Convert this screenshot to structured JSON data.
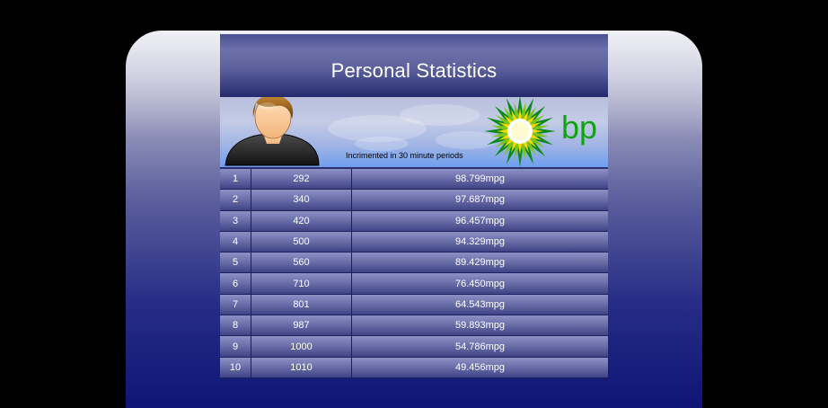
{
  "header": {
    "title": "Personal Statistics",
    "subtitle": "Incrimented in 30 minute periods",
    "logo_text": "bp",
    "logo_icon": "bp-helios-logo-icon",
    "avatar_icon": "user-avatar-icon"
  },
  "colors": {
    "logo_green": "#12a313",
    "logo_yellow": "#ffd800",
    "row_text": "#ffffff",
    "banner_blue": "#6f9ff0"
  },
  "table": {
    "rows": [
      {
        "index": "1",
        "value": "292",
        "mpg": "98.799mpg"
      },
      {
        "index": "2",
        "value": "340",
        "mpg": "97.687mpg"
      },
      {
        "index": "3",
        "value": "420",
        "mpg": "96.457mpg"
      },
      {
        "index": "4",
        "value": "500",
        "mpg": "94.329mpg"
      },
      {
        "index": "5",
        "value": "560",
        "mpg": "89.429mpg"
      },
      {
        "index": "6",
        "value": "710",
        "mpg": "76.450mpg"
      },
      {
        "index": "7",
        "value": "801",
        "mpg": "64.543mpg"
      },
      {
        "index": "8",
        "value": "987",
        "mpg": "59.893mpg"
      },
      {
        "index": "9",
        "value": "1000",
        "mpg": "54.786mpg"
      },
      {
        "index": "10",
        "value": "1010",
        "mpg": "49.456mpg"
      }
    ]
  }
}
